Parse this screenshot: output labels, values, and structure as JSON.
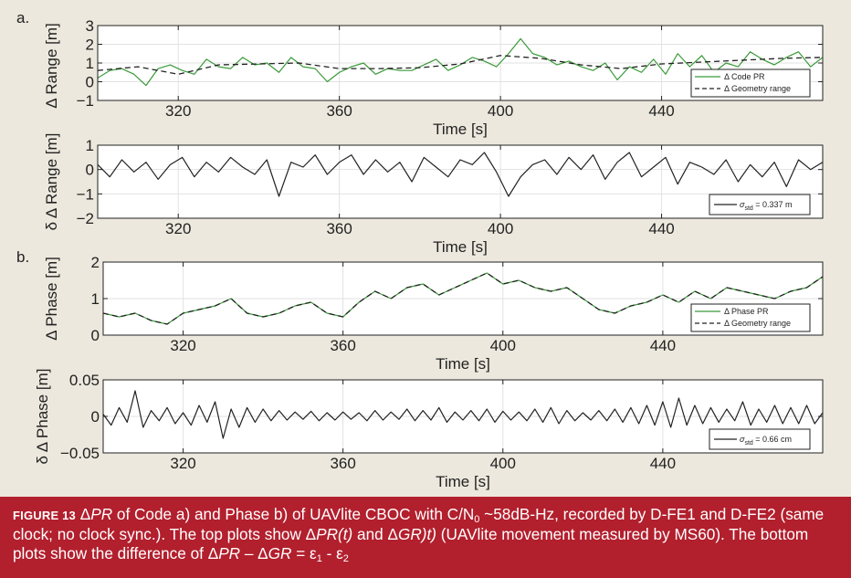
{
  "panel_labels": [
    "a.",
    "b."
  ],
  "chart_data": [
    {
      "type": "line",
      "xlabel": "Time [s]",
      "ylabel": "Δ Range [m]",
      "xlim": [
        300,
        480
      ],
      "ylim": [
        -1,
        3
      ],
      "xticks": [
        320,
        360,
        400,
        440
      ],
      "yticks": [
        3,
        2,
        1,
        0,
        -1
      ],
      "yticklabels": [
        "3",
        "2",
        "1",
        "0",
        "−1"
      ],
      "grid": true,
      "legend_position": "bottom-right",
      "series": [
        {
          "name": "Δ Code PR",
          "style": "solid",
          "color": "#3a9a3a",
          "x": [
            300,
            303,
            306,
            309,
            312,
            315,
            318,
            321,
            324,
            327,
            330,
            333,
            336,
            339,
            342,
            345,
            348,
            351,
            354,
            357,
            360,
            363,
            366,
            369,
            372,
            375,
            378,
            381,
            384,
            387,
            390,
            393,
            396,
            399,
            402,
            405,
            408,
            411,
            414,
            417,
            420,
            423,
            426,
            429,
            432,
            435,
            438,
            441,
            444,
            447,
            450,
            453,
            456,
            459,
            462,
            465,
            468,
            471,
            474,
            477,
            480
          ],
          "y": [
            0.2,
            0.6,
            0.7,
            0.4,
            -0.2,
            0.7,
            0.9,
            0.6,
            0.4,
            1.2,
            0.8,
            0.7,
            1.3,
            0.9,
            1.0,
            0.5,
            1.3,
            0.8,
            0.7,
            0.0,
            0.5,
            0.8,
            1.0,
            0.4,
            0.7,
            0.6,
            0.6,
            0.9,
            1.2,
            0.6,
            0.9,
            1.3,
            1.1,
            0.8,
            1.5,
            2.3,
            1.5,
            1.3,
            0.9,
            1.1,
            0.8,
            0.6,
            1.0,
            0.1,
            0.8,
            0.5,
            1.2,
            0.4,
            1.5,
            0.8,
            1.4,
            0.5,
            1.0,
            0.8,
            1.6,
            1.2,
            0.9,
            1.3,
            1.6,
            0.8,
            1.3
          ]
        },
        {
          "name": "Δ Geometry range",
          "style": "dashed",
          "color": "#222222",
          "x": [
            300,
            310,
            320,
            330,
            340,
            350,
            360,
            370,
            380,
            390,
            400,
            410,
            420,
            430,
            440,
            450,
            460,
            470,
            480
          ],
          "y": [
            0.6,
            0.8,
            0.4,
            0.9,
            0.95,
            1.0,
            0.7,
            0.7,
            0.75,
            0.95,
            1.4,
            1.25,
            0.9,
            0.7,
            0.95,
            1.05,
            1.15,
            1.25,
            1.3
          ]
        }
      ]
    },
    {
      "type": "line",
      "xlabel": "Time [s]",
      "ylabel": "δ Δ Range [m]",
      "xlim": [
        300,
        480
      ],
      "ylim": [
        -2,
        1
      ],
      "xticks": [
        320,
        360,
        400,
        440
      ],
      "yticks": [
        1,
        0,
        -1,
        -2
      ],
      "yticklabels": [
        "1",
        "0",
        "−1",
        "−2"
      ],
      "grid": true,
      "legend_position": "bottom-right",
      "legend": {
        "symbol": "σ",
        "subscript": "std",
        "value": "= 0.337 m"
      },
      "series": [
        {
          "name": "",
          "style": "solid",
          "color": "#222222",
          "x": [
            300,
            303,
            306,
            309,
            312,
            315,
            318,
            321,
            324,
            327,
            330,
            333,
            336,
            339,
            342,
            345,
            348,
            351,
            354,
            357,
            360,
            363,
            366,
            369,
            372,
            375,
            378,
            381,
            384,
            387,
            390,
            393,
            396,
            399,
            402,
            405,
            408,
            411,
            414,
            417,
            420,
            423,
            426,
            429,
            432,
            435,
            438,
            441,
            444,
            447,
            450,
            453,
            456,
            459,
            462,
            465,
            468,
            471,
            474,
            477,
            480
          ],
          "y": [
            0.2,
            -0.3,
            0.4,
            -0.1,
            0.3,
            -0.4,
            0.2,
            0.5,
            -0.3,
            0.3,
            -0.1,
            0.5,
            0.1,
            -0.2,
            0.4,
            -1.1,
            0.3,
            0.1,
            0.6,
            -0.2,
            0.3,
            0.6,
            -0.2,
            0.4,
            -0.1,
            0.3,
            -0.5,
            0.5,
            0.1,
            -0.3,
            0.4,
            0.2,
            0.7,
            -0.1,
            -1.1,
            -0.3,
            0.2,
            0.4,
            -0.2,
            0.5,
            0.0,
            0.6,
            -0.4,
            0.3,
            0.7,
            -0.3,
            0.1,
            0.5,
            -0.6,
            0.3,
            0.1,
            -0.2,
            0.4,
            -0.5,
            0.2,
            -0.3,
            0.3,
            -0.7,
            0.4,
            0.0,
            0.3
          ]
        }
      ]
    },
    {
      "type": "line",
      "xlabel": "Time [s]",
      "ylabel": "Δ Phase [m]",
      "xlim": [
        300,
        480
      ],
      "ylim": [
        0,
        2
      ],
      "xticks": [
        320,
        360,
        400,
        440
      ],
      "yticks": [
        2,
        1,
        0
      ],
      "yticklabels": [
        "2",
        "1",
        "0"
      ],
      "grid": true,
      "legend_position": "bottom-right",
      "series": [
        {
          "name": "Δ Phase PR",
          "style": "solid",
          "color": "#3a9a3a",
          "x": [
            300,
            304,
            308,
            312,
            316,
            320,
            324,
            328,
            332,
            336,
            340,
            344,
            348,
            352,
            356,
            360,
            364,
            368,
            372,
            376,
            380,
            384,
            388,
            392,
            396,
            400,
            404,
            408,
            412,
            416,
            420,
            424,
            428,
            432,
            436,
            440,
            444,
            448,
            452,
            456,
            460,
            464,
            468,
            472,
            476,
            480
          ],
          "y": [
            0.6,
            0.5,
            0.6,
            0.4,
            0.3,
            0.6,
            0.7,
            0.8,
            1.0,
            0.6,
            0.5,
            0.6,
            0.8,
            0.9,
            0.6,
            0.5,
            0.9,
            1.2,
            1.0,
            1.3,
            1.4,
            1.1,
            1.3,
            1.5,
            1.7,
            1.4,
            1.5,
            1.3,
            1.2,
            1.3,
            1.0,
            0.7,
            0.6,
            0.8,
            0.9,
            1.1,
            0.9,
            1.2,
            1.0,
            1.3,
            1.2,
            1.1,
            1.0,
            1.2,
            1.3,
            1.6
          ]
        },
        {
          "name": "Δ Geometry range",
          "style": "dashed",
          "color": "#222222",
          "x": [
            300,
            304,
            308,
            312,
            316,
            320,
            324,
            328,
            332,
            336,
            340,
            344,
            348,
            352,
            356,
            360,
            364,
            368,
            372,
            376,
            380,
            384,
            388,
            392,
            396,
            400,
            404,
            408,
            412,
            416,
            420,
            424,
            428,
            432,
            436,
            440,
            444,
            448,
            452,
            456,
            460,
            464,
            468,
            472,
            476,
            480
          ],
          "y": [
            0.6,
            0.5,
            0.6,
            0.4,
            0.3,
            0.6,
            0.7,
            0.8,
            1.0,
            0.6,
            0.5,
            0.6,
            0.8,
            0.9,
            0.6,
            0.5,
            0.9,
            1.2,
            1.0,
            1.3,
            1.4,
            1.1,
            1.3,
            1.5,
            1.7,
            1.4,
            1.5,
            1.3,
            1.2,
            1.3,
            1.0,
            0.7,
            0.6,
            0.8,
            0.9,
            1.1,
            0.9,
            1.2,
            1.0,
            1.3,
            1.2,
            1.1,
            1.0,
            1.2,
            1.3,
            1.6
          ]
        }
      ]
    },
    {
      "type": "line",
      "xlabel": "Time [s]",
      "ylabel": "δ Δ Phase [m]",
      "xlim": [
        300,
        480
      ],
      "ylim": [
        -0.05,
        0.05
      ],
      "xticks": [
        320,
        360,
        400,
        440
      ],
      "yticks": [
        0.05,
        0,
        -0.05
      ],
      "yticklabels": [
        "0.05",
        "0",
        "−0.05"
      ],
      "grid": true,
      "legend_position": "bottom-right",
      "legend": {
        "symbol": "σ",
        "subscript": "std",
        "value": "= 0.66 cm"
      },
      "series": [
        {
          "name": "",
          "style": "solid",
          "color": "#222222",
          "x": [
            300,
            302,
            304,
            306,
            308,
            310,
            312,
            314,
            316,
            318,
            320,
            322,
            324,
            326,
            328,
            330,
            332,
            334,
            336,
            338,
            340,
            342,
            344,
            346,
            348,
            350,
            352,
            354,
            356,
            358,
            360,
            362,
            364,
            366,
            368,
            370,
            372,
            374,
            376,
            378,
            380,
            382,
            384,
            386,
            388,
            390,
            392,
            394,
            396,
            398,
            400,
            402,
            404,
            406,
            408,
            410,
            412,
            414,
            416,
            418,
            420,
            422,
            424,
            426,
            428,
            430,
            432,
            434,
            436,
            438,
            440,
            442,
            444,
            446,
            448,
            450,
            452,
            454,
            456,
            458,
            460,
            462,
            464,
            466,
            468,
            470,
            472,
            474,
            476,
            478,
            480
          ],
          "y": [
            0.003,
            -0.012,
            0.012,
            -0.008,
            0.035,
            -0.015,
            0.008,
            -0.006,
            0.012,
            -0.01,
            0.005,
            -0.012,
            0.015,
            -0.008,
            0.02,
            -0.03,
            0.01,
            -0.015,
            0.012,
            -0.008,
            0.01,
            -0.006,
            0.008,
            -0.005,
            0.006,
            -0.004,
            0.007,
            -0.006,
            0.005,
            -0.005,
            0.006,
            -0.004,
            0.005,
            -0.006,
            0.008,
            -0.005,
            0.006,
            -0.004,
            0.01,
            -0.006,
            0.008,
            -0.005,
            0.012,
            -0.008,
            0.006,
            -0.005,
            0.008,
            -0.006,
            0.01,
            -0.008,
            0.007,
            -0.005,
            0.006,
            -0.006,
            0.01,
            -0.008,
            0.012,
            -0.01,
            0.008,
            -0.006,
            0.005,
            -0.005,
            0.008,
            -0.006,
            0.01,
            -0.008,
            0.012,
            -0.01,
            0.015,
            -0.012,
            0.02,
            -0.015,
            0.025,
            -0.012,
            0.015,
            -0.01,
            0.012,
            -0.008,
            0.01,
            -0.006,
            0.02,
            -0.012,
            0.01,
            -0.008,
            0.015,
            -0.01,
            0.012,
            -0.01,
            0.015,
            -0.01,
            0.005
          ]
        }
      ]
    }
  ],
  "caption": {
    "lead": "FIGURE 13",
    "line1_parts": [
      {
        "t": " Δ",
        "i": false
      },
      {
        "t": "PR",
        "i": true
      },
      {
        "t": " of Code a) and Phase b) of UAVlite CBOC with C/N",
        "i": false
      },
      {
        "t": "0",
        "sub": true
      },
      {
        "t": " ~58dB-Hz, recorded by D-FE1 and D-FE2 (same",
        "i": false
      }
    ],
    "line2_parts": [
      {
        "t": "clock; no clock sync.). The top plots show Δ",
        "i": false
      },
      {
        "t": "PR(t)",
        "i": true
      },
      {
        "t": " and Δ",
        "i": false
      },
      {
        "t": "GR)t)",
        "i": true
      },
      {
        "t": " (UAVlite movement measured by MS60). The bottom",
        "i": false
      }
    ],
    "line3_parts": [
      {
        "t": "plots show the difference of Δ",
        "i": false
      },
      {
        "t": "PR",
        "i": true
      },
      {
        "t": " – Δ",
        "i": false
      },
      {
        "t": "GR",
        "i": true
      },
      {
        "t": " = ε",
        "i": false
      },
      {
        "t": "1",
        "sub": true
      },
      {
        "t": " - ε",
        "i": false
      },
      {
        "t": "2",
        "sub": true
      }
    ]
  }
}
